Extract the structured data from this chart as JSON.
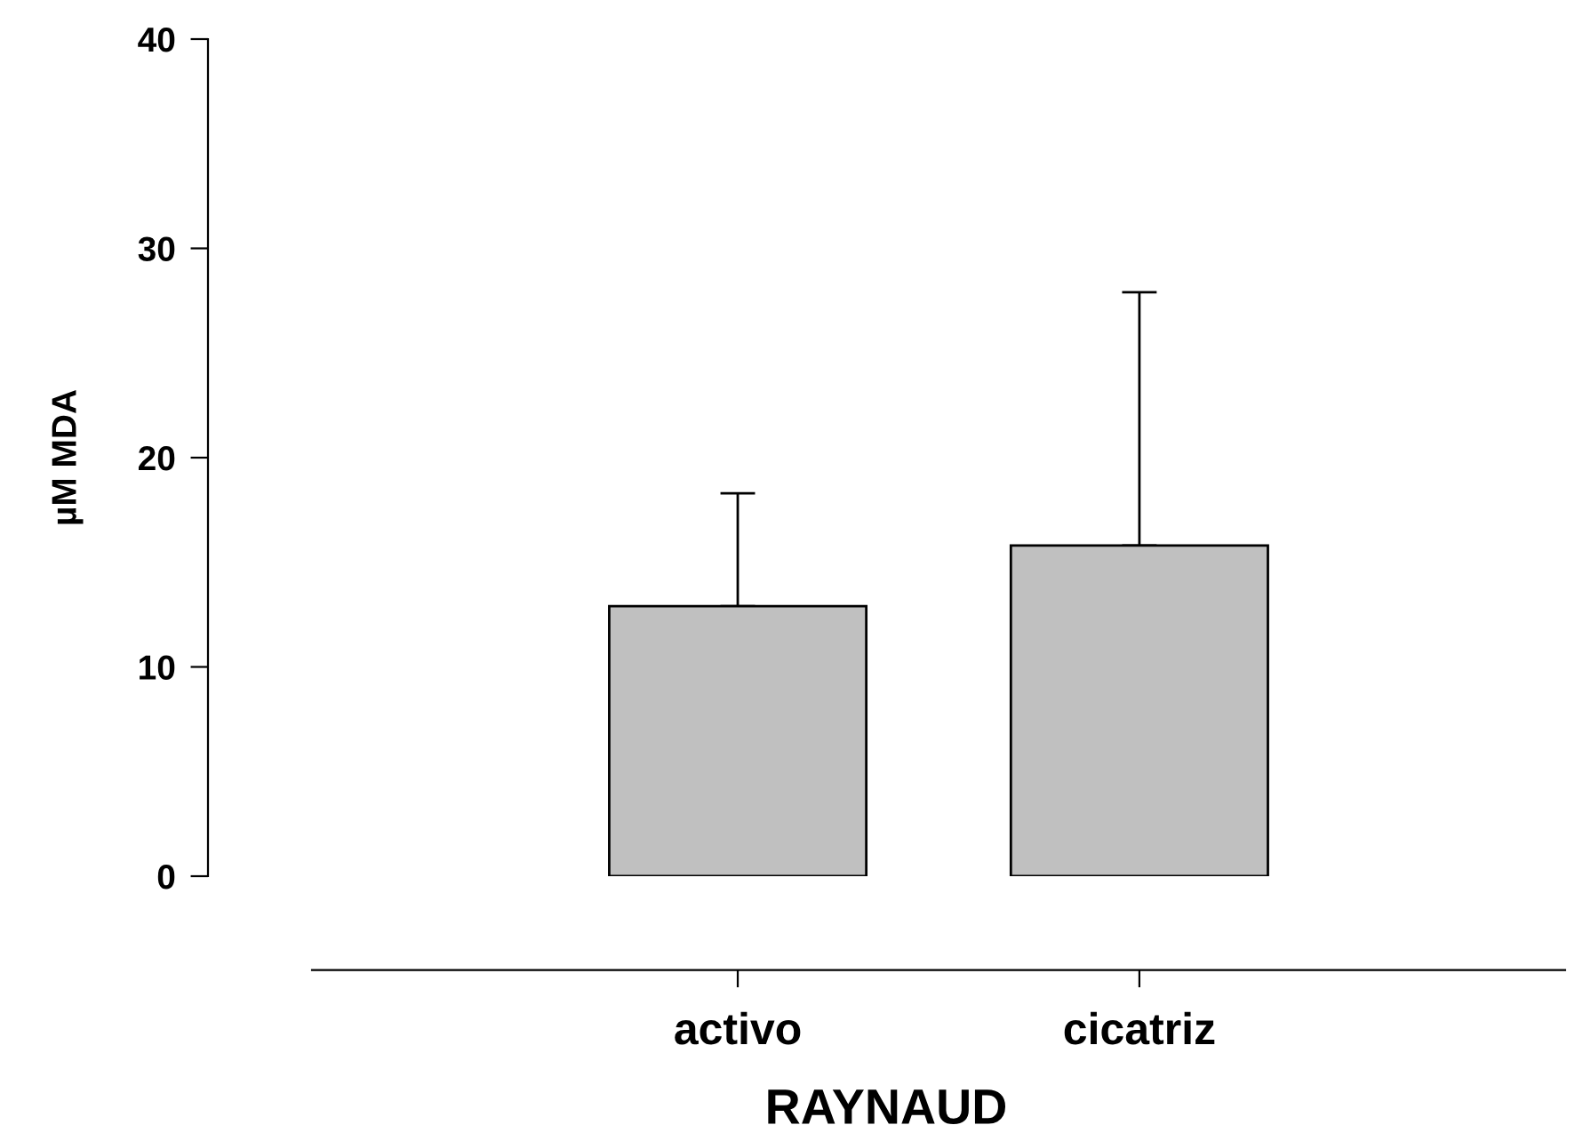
{
  "chart_data": {
    "type": "bar",
    "xlabel": "RAYNAUD",
    "ylabel": "µM MDA",
    "categories": [
      "activo",
      "cicatriz"
    ],
    "values": [
      12.9,
      15.8
    ],
    "color": "#c0c0c0",
    "errors": [
      [
        12.9,
        18.3
      ],
      [
        15.8,
        27.9
      ]
    ],
    "ylim": [
      0,
      40
    ],
    "yticks": [
      0,
      10,
      20,
      30,
      40
    ],
    "grid": false,
    "legend": false
  }
}
